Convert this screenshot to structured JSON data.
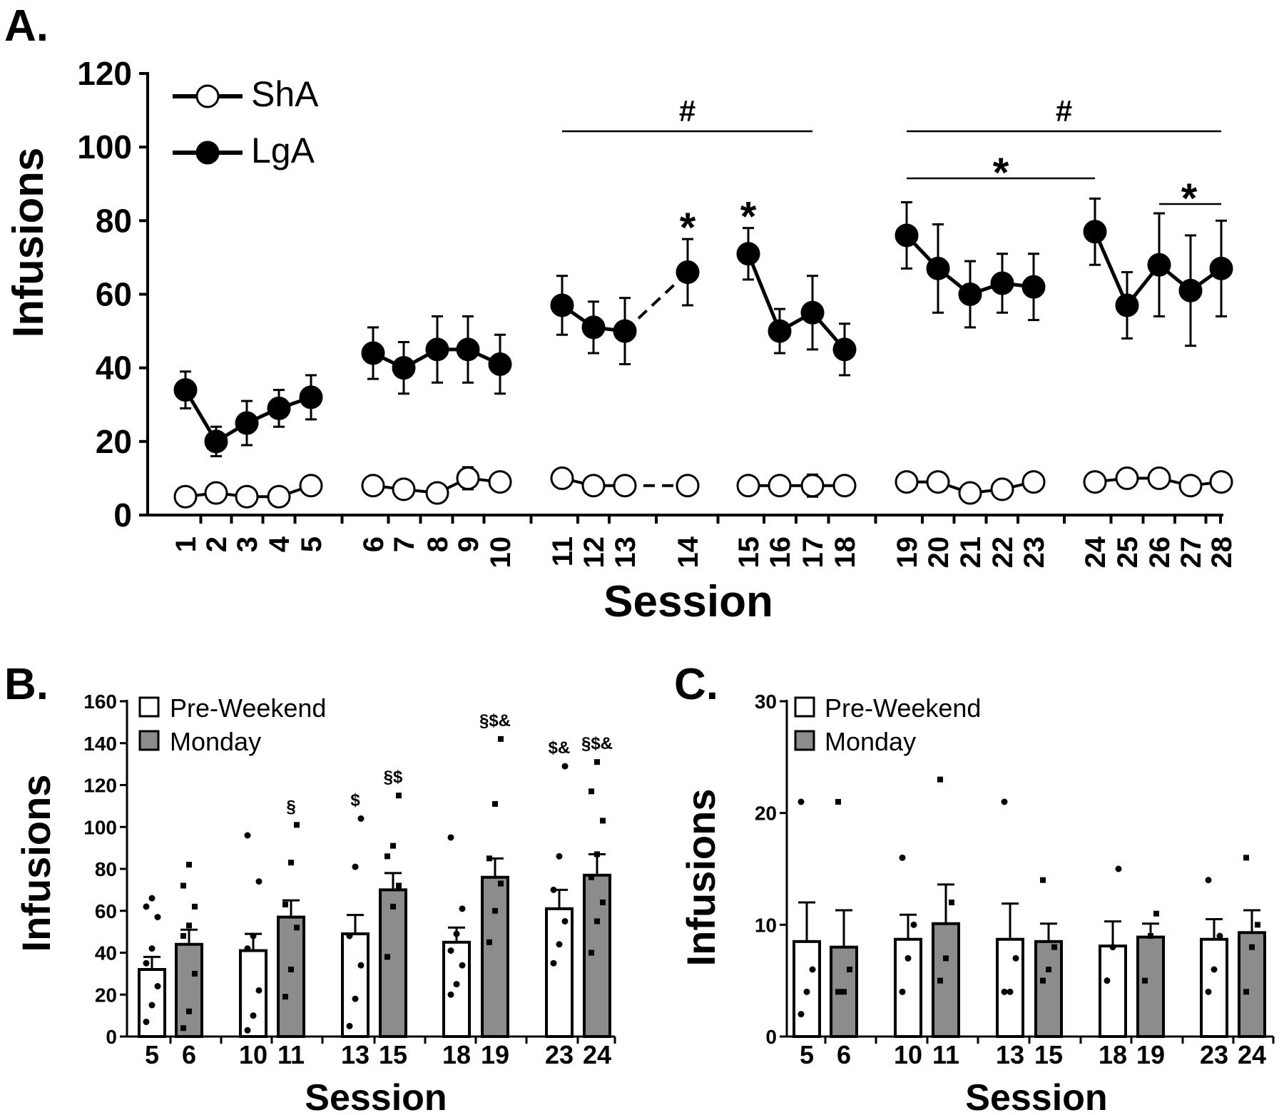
{
  "chart_data": [
    {
      "panel": "A.",
      "type": "line",
      "xlabel": "Session",
      "ylabel": "Infusions",
      "ylim": [
        0,
        120
      ],
      "yticks": [
        0,
        20,
        40,
        60,
        80,
        100,
        120
      ],
      "legend": [
        {
          "name": "ShA",
          "marker": "open-circle"
        },
        {
          "name": "LgA",
          "marker": "filled-circle"
        }
      ],
      "legend_placement": "top-left",
      "sessions": [
        1,
        2,
        3,
        4,
        5,
        6,
        7,
        8,
        9,
        10,
        11,
        12,
        13,
        14,
        15,
        16,
        17,
        18,
        19,
        20,
        21,
        22,
        23,
        24,
        25,
        26,
        27,
        28
      ],
      "segments": [
        [
          1,
          2,
          3,
          4,
          5
        ],
        [
          6,
          7,
          8,
          9,
          10
        ],
        [
          11,
          12,
          13
        ],
        [
          14
        ],
        [
          15,
          16,
          17,
          18
        ],
        [
          19,
          20,
          21,
          22,
          23
        ],
        [
          24,
          25,
          26,
          27,
          28
        ]
      ],
      "dashed_links": [
        [
          13,
          14
        ]
      ],
      "series": [
        {
          "name": "ShA",
          "values": [
            5,
            6,
            5,
            5,
            8,
            8,
            7,
            6,
            10,
            9,
            10,
            8,
            8,
            8,
            8,
            8,
            8,
            8,
            9,
            9,
            6,
            7,
            9,
            9,
            10,
            10,
            8,
            9
          ],
          "errors": [
            1,
            1,
            1,
            1,
            1,
            1,
            1,
            1,
            3,
            1,
            1,
            1,
            1,
            1,
            1,
            1,
            3,
            1,
            1,
            2,
            1,
            1,
            1,
            1,
            1,
            1,
            1,
            1
          ]
        },
        {
          "name": "LgA",
          "values": [
            34,
            20,
            25,
            29,
            32,
            44,
            40,
            45,
            45,
            41,
            57,
            51,
            50,
            66,
            71,
            50,
            55,
            45,
            76,
            67,
            60,
            63,
            62,
            77,
            57,
            68,
            61,
            67
          ],
          "errors": [
            5,
            4,
            6,
            5,
            6,
            7,
            7,
            9,
            9,
            8,
            8,
            7,
            9,
            9,
            7,
            6,
            10,
            7,
            9,
            12,
            9,
            8,
            9,
            9,
            9,
            14,
            15,
            13
          ]
        }
      ],
      "annotations": [
        {
          "text": "#",
          "from": 11,
          "to": 17
        },
        {
          "text": "#",
          "from": 19,
          "to": 28
        },
        {
          "text": "*",
          "from": 19,
          "to": 24
        },
        {
          "text": "*",
          "from": 26,
          "to": 28
        },
        {
          "text": "*",
          "at": 14
        },
        {
          "text": "*",
          "at": 15
        }
      ]
    },
    {
      "panel": "B.",
      "type": "bar",
      "xlabel": "Session",
      "ylabel": "Infusions",
      "ylim": [
        0,
        160
      ],
      "yticks": [
        0,
        20,
        40,
        60,
        80,
        100,
        120,
        140,
        160
      ],
      "legend": [
        {
          "name": "Pre-Weekend",
          "color": "#ffffff"
        },
        {
          "name": "Monday",
          "color": "#8c8c8c"
        }
      ],
      "legend_placement": "top-left",
      "pairs": [
        {
          "pre": {
            "session": "5",
            "value": 32,
            "err": 6,
            "points": [
              7,
              15,
              24,
              35,
              42,
              57,
              62,
              66
            ]
          },
          "mon": {
            "session": "6",
            "value": 44,
            "err": 7,
            "points": [
              4,
              12,
              30,
              48,
              53,
              62,
              72,
              82
            ]
          }
        },
        {
          "pre": {
            "session": "10",
            "value": 41,
            "err": 8,
            "points": [
              3,
              10,
              22,
              42,
              48,
              74,
              96
            ]
          },
          "mon": {
            "session": "11",
            "value": 57,
            "err": 8,
            "points": [
              19,
              32,
              52,
              63,
              83,
              101
            ],
            "annotation": "§"
          }
        },
        {
          "pre": {
            "session": "13",
            "value": 49,
            "err": 9,
            "points": [
              5,
              18,
              34,
              48,
              81,
              104
            ],
            "annotation": "$"
          },
          "mon": {
            "session": "15",
            "value": 70,
            "err": 8,
            "points": [
              38,
              62,
              72,
              86,
              91,
              115
            ],
            "annotation": "§$"
          }
        },
        {
          "pre": {
            "session": "18",
            "value": 45,
            "err": 7,
            "points": [
              20,
              25,
              34,
              41,
              49,
              61,
              95
            ]
          },
          "mon": {
            "session": "19",
            "value": 76,
            "err": 9,
            "points": [
              45,
              60,
              73,
              85,
              111,
              142
            ],
            "annotation": "§$&"
          }
        },
        {
          "pre": {
            "session": "23",
            "value": 61,
            "err": 9,
            "points": [
              35,
              44,
              55,
              70,
              86,
              129
            ],
            "annotation": "$&"
          },
          "mon": {
            "session": "24",
            "value": 77,
            "err": 10,
            "points": [
              40,
              55,
              64,
              76,
              87,
              103,
              117,
              131
            ],
            "annotation": "§$&"
          }
        }
      ]
    },
    {
      "panel": "C.",
      "type": "bar",
      "xlabel": "Session",
      "ylabel": "Infusions",
      "ylim": [
        0,
        30
      ],
      "yticks": [
        0,
        10,
        20,
        30
      ],
      "legend": [
        {
          "name": "Pre-Weekend",
          "color": "#ffffff"
        },
        {
          "name": "Monday",
          "color": "#8c8c8c"
        }
      ],
      "legend_placement": "top-left",
      "pairs": [
        {
          "pre": {
            "session": "5",
            "value": 8.5,
            "err": 3.5,
            "points": [
              2,
              4,
              6,
              21
            ]
          },
          "mon": {
            "session": "6",
            "value": 8,
            "err": 3.3,
            "points": [
              4,
              4,
              6,
              21
            ]
          }
        },
        {
          "pre": {
            "session": "10",
            "value": 8.7,
            "err": 2.2,
            "points": [
              4,
              7,
              10,
              16
            ]
          },
          "mon": {
            "session": "11",
            "value": 10.1,
            "err": 3.5,
            "points": [
              5,
              7,
              12,
              23
            ]
          }
        },
        {
          "pre": {
            "session": "13",
            "value": 8.7,
            "err": 3.2,
            "points": [
              4,
              4,
              7,
              21
            ]
          },
          "mon": {
            "session": "15",
            "value": 8.5,
            "err": 1.6,
            "points": [
              5,
              6,
              8,
              14
            ]
          }
        },
        {
          "pre": {
            "session": "18",
            "value": 8.1,
            "err": 2.2,
            "points": [
              5,
              8,
              15
            ]
          },
          "mon": {
            "session": "19",
            "value": 8.9,
            "err": 1.2,
            "points": [
              5,
              9,
              11
            ]
          }
        },
        {
          "pre": {
            "session": "23",
            "value": 8.7,
            "err": 1.8,
            "points": [
              4,
              6,
              9,
              14
            ]
          },
          "mon": {
            "session": "24",
            "value": 9.3,
            "err": 2.0,
            "points": [
              4,
              8,
              10,
              16
            ]
          }
        }
      ]
    }
  ]
}
